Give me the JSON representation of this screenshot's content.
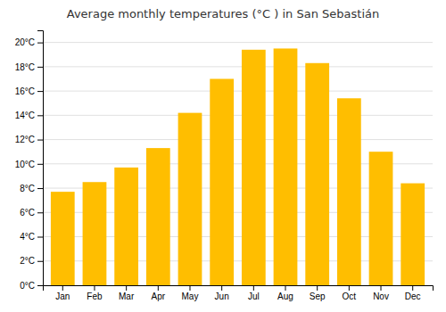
{
  "chart_data": {
    "type": "bar",
    "title": "Average monthly temperatures (°C ) in San Sebastián",
    "categories": [
      "Jan",
      "Feb",
      "Mar",
      "Apr",
      "May",
      "Jun",
      "Jul",
      "Aug",
      "Sep",
      "Oct",
      "Nov",
      "Dec"
    ],
    "values": [
      7.7,
      8.5,
      9.7,
      11.3,
      14.2,
      17.0,
      19.4,
      19.5,
      18.3,
      15.4,
      11.0,
      8.4
    ],
    "color": "#FFBE00",
    "ylim": [
      0,
      21
    ],
    "yticks": [
      {
        "value": 0,
        "label": "0°C"
      },
      {
        "value": 2,
        "label": "2°C"
      },
      {
        "value": 4,
        "label": "4°C"
      },
      {
        "value": 6,
        "label": "6°C"
      },
      {
        "value": 8,
        "label": "8°C"
      },
      {
        "value": 10,
        "label": "10°C"
      },
      {
        "value": 12,
        "label": "12°C"
      },
      {
        "value": 14,
        "label": "14°C"
      },
      {
        "value": 16,
        "label": "16°C"
      },
      {
        "value": 18,
        "label": "18°C"
      },
      {
        "value": 20,
        "label": "20°C"
      }
    ],
    "grid": true
  }
}
